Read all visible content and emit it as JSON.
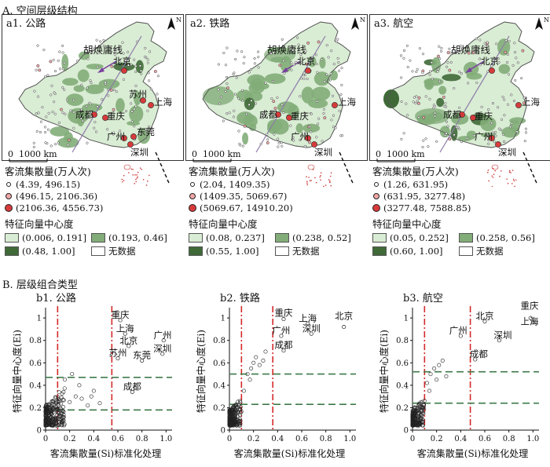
{
  "section_a": {
    "title": "A. 空间层级结构"
  },
  "section_b": {
    "title": "B. 层级组合类型"
  },
  "maps": [
    {
      "title": "a1. 公路",
      "hu_line": "胡焕庸线",
      "scale": "1000 km",
      "cities": [
        "北京",
        "上海",
        "苏州",
        "成都",
        "重庆",
        "广州",
        "东莞",
        "深圳"
      ],
      "legend_flow_title": "客流集散量(万人次)",
      "legend_flow": [
        "(4.39, 496.15)",
        "(496.15, 2106.36)",
        "(2106.36, 4556.73)"
      ],
      "legend_ev_title": "特征向量中心度",
      "legend_ev": [
        "(0.006, 0.191]",
        "(0.193, 0.46]",
        "(0.48, 1.00]",
        "无数据"
      ]
    },
    {
      "title": "a2. 铁路",
      "hu_line": "胡焕庸线",
      "scale": "1000 km",
      "cities": [
        "北京",
        "上海",
        "成都",
        "重庆",
        "广州",
        "深圳"
      ],
      "legend_flow_title": "客流集散量(万人次)",
      "legend_flow": [
        "(2.04, 1409.35)",
        "(1409.35, 5069.67)",
        "(5069.67, 14910.20)"
      ],
      "legend_ev_title": "特征向量中心度",
      "legend_ev": [
        "(0.08, 0.237]",
        "(0.238, 0.52]",
        "(0.55, 1.00]",
        "无数据"
      ]
    },
    {
      "title": "a3. 航空",
      "hu_line": "胡焕庸线",
      "scale": "1000 km",
      "cities": [
        "北京",
        "上海",
        "成都",
        "重庆",
        "广州",
        "深圳"
      ],
      "legend_flow_title": "客流集散量(万人次)",
      "legend_flow": [
        "(1.26, 631.95)",
        "(631.95, 3277.48)",
        "(3277.48, 7588.85)"
      ],
      "legend_ev_title": "特征向量中心度",
      "legend_ev": [
        "(0.05, 0.252]",
        "(0.258, 0.56]",
        "(0.60, 1.00]",
        "无数据"
      ]
    }
  ],
  "colors": {
    "ev_low": "#d9ecd4",
    "ev_mid": "#82ad79",
    "ev_high": "#3f6a38",
    "no_data": "#ffffff",
    "dot_small": "#ffffff",
    "dot_mid": "#f2a7a7",
    "dot_large": "#d63b3b",
    "threshold_red": "#d42a2a",
    "threshold_green": "#3e7a4a",
    "hu_arrow": "#7a3fa0"
  },
  "chart_data": [
    {
      "type": "scatter",
      "title": "b1. 公路",
      "xlabel": "客流集散量(Si)标准化处理",
      "ylabel": "特征向量中心度(Ei)",
      "xticks": [
        "0",
        "0.2",
        "0.4",
        "0.6",
        "0.8",
        "1.0"
      ],
      "yticks": [
        "0",
        "0.2",
        "0.4",
        "0.6",
        "0.8",
        "1"
      ],
      "xlim": [
        0,
        1.05
      ],
      "ylim": [
        0,
        1.05
      ],
      "thresholds_x": [
        0.1,
        0.55
      ],
      "thresholds_y": [
        0.18,
        0.47
      ],
      "labels": [
        {
          "text": "重庆",
          "x": 0.62,
          "y": 1.0
        },
        {
          "text": "上海",
          "x": 0.66,
          "y": 0.88
        },
        {
          "text": "北京",
          "x": 0.69,
          "y": 0.77
        },
        {
          "text": "苏州",
          "x": 0.6,
          "y": 0.66
        },
        {
          "text": "东莞",
          "x": 0.8,
          "y": 0.64
        },
        {
          "text": "广州",
          "x": 0.98,
          "y": 0.82
        },
        {
          "text": "深圳",
          "x": 0.97,
          "y": 0.7
        },
        {
          "text": "成都",
          "x": 0.72,
          "y": 0.36
        }
      ]
    },
    {
      "type": "scatter",
      "title": "b2. 铁路",
      "xlabel": "客流集散量(Si)标准化处理",
      "ylabel": "特征向量中心度(Ei)",
      "xticks": [
        "0",
        "0.2",
        "0.4",
        "0.6",
        "0.8",
        "1.0"
      ],
      "yticks": [
        "0",
        "0.2",
        "0.4",
        "0.6",
        "0.8",
        "1"
      ],
      "xlim": [
        0,
        1.05
      ],
      "ylim": [
        0,
        1.05
      ],
      "thresholds_x": [
        0.1,
        0.36
      ],
      "thresholds_y": [
        0.23,
        0.5
      ],
      "labels": [
        {
          "text": "重庆",
          "x": 0.45,
          "y": 1.02
        },
        {
          "text": "上海",
          "x": 0.65,
          "y": 0.97
        },
        {
          "text": "北京",
          "x": 0.95,
          "y": 0.99
        },
        {
          "text": "广州",
          "x": 0.43,
          "y": 0.86
        },
        {
          "text": "深圳",
          "x": 0.68,
          "y": 0.88
        },
        {
          "text": "成都",
          "x": 0.45,
          "y": 0.73
        }
      ]
    },
    {
      "type": "scatter",
      "title": "b3. 航空",
      "xlabel": "客流集散量(Si)标准化处理",
      "ylabel": "特征向量中心度(Ei)",
      "xticks": [
        "0",
        "0.2",
        "0.4",
        "0.6",
        "0.8",
        "1.0"
      ],
      "yticks": [
        "0",
        "0.2",
        "0.4",
        "0.6",
        "0.8",
        "1"
      ],
      "xlim": [
        0,
        1.05
      ],
      "ylim": [
        0,
        1.05
      ],
      "thresholds_x": [
        0.1,
        0.48
      ],
      "thresholds_y": [
        0.24,
        0.52
      ],
      "labels": [
        {
          "text": "重庆",
          "x": 0.98,
          "y": 1.08
        },
        {
          "text": "上海",
          "x": 1.03,
          "y": 0.94
        },
        {
          "text": "北京",
          "x": 0.6,
          "y": 0.99
        },
        {
          "text": "广州",
          "x": 0.38,
          "y": 0.86
        },
        {
          "text": "深圳",
          "x": 0.75,
          "y": 0.82
        },
        {
          "text": "成都",
          "x": 0.55,
          "y": 0.65
        }
      ]
    }
  ]
}
